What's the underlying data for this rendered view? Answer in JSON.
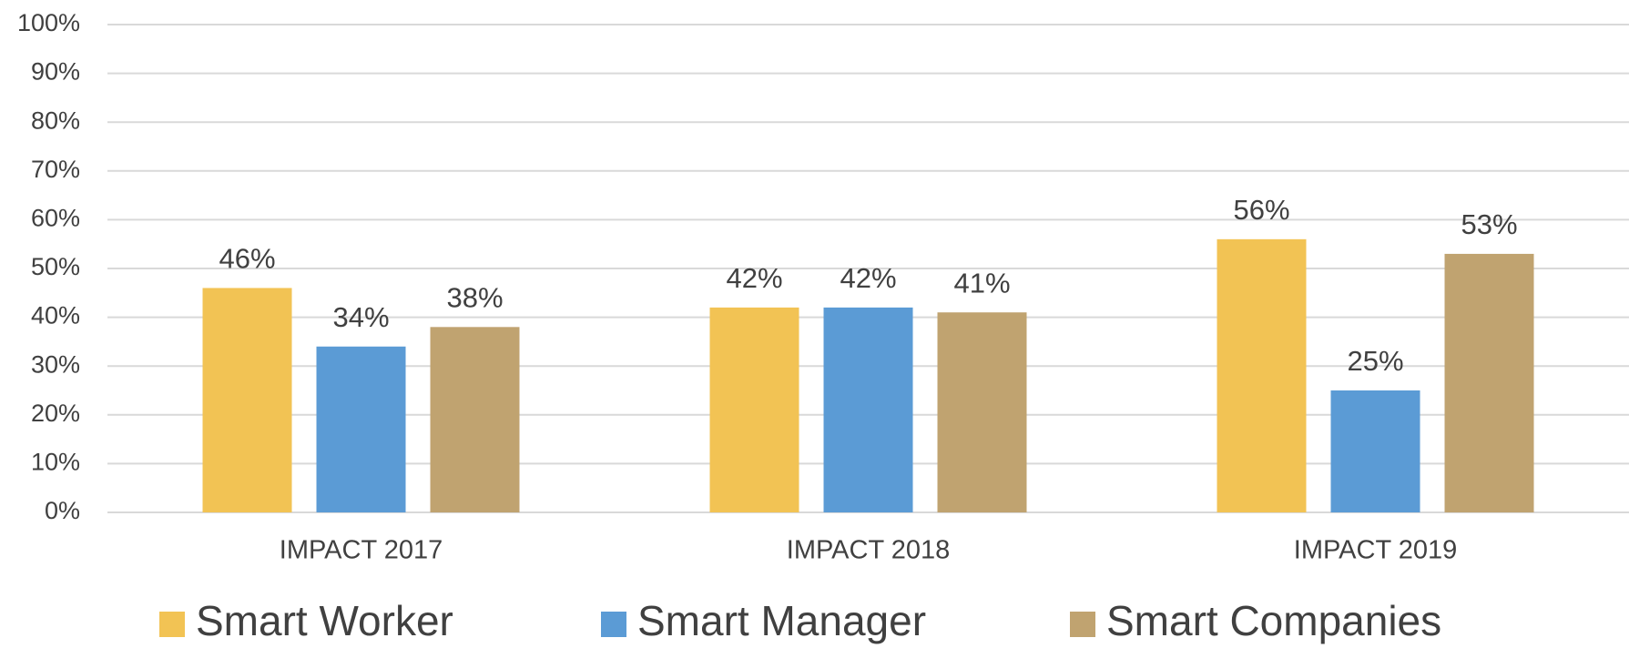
{
  "chart_data": {
    "type": "bar",
    "categories": [
      "IMPACT 2017",
      "IMPACT 2018",
      "IMPACT 2019"
    ],
    "series": [
      {
        "name": "Smart Worker",
        "color": "#f2c354",
        "values": [
          46,
          42,
          56
        ],
        "value_labels": [
          "46%",
          "42%",
          "56%"
        ]
      },
      {
        "name": "Smart Manager",
        "color": "#5b9bd5",
        "values": [
          34,
          42,
          25
        ],
        "value_labels": [
          "34%",
          "42%",
          "25%"
        ]
      },
      {
        "name": "Smart Companies",
        "color": "#c0a370",
        "values": [
          38,
          41,
          53
        ],
        "value_labels": [
          "38%",
          "41%",
          "53%"
        ]
      }
    ],
    "ylim": [
      0,
      100
    ],
    "yticks": [
      {
        "value": 0,
        "label": "0%"
      },
      {
        "value": 10,
        "label": "10%"
      },
      {
        "value": 20,
        "label": "20%"
      },
      {
        "value": 30,
        "label": "30%"
      },
      {
        "value": 40,
        "label": "40%"
      },
      {
        "value": 50,
        "label": "50%"
      },
      {
        "value": 60,
        "label": "60%"
      },
      {
        "value": 70,
        "label": "70%"
      },
      {
        "value": 80,
        "label": "80%"
      },
      {
        "value": 90,
        "label": "90%"
      },
      {
        "value": 100,
        "label": "100%"
      }
    ],
    "grid": true,
    "legend": "bottom"
  }
}
